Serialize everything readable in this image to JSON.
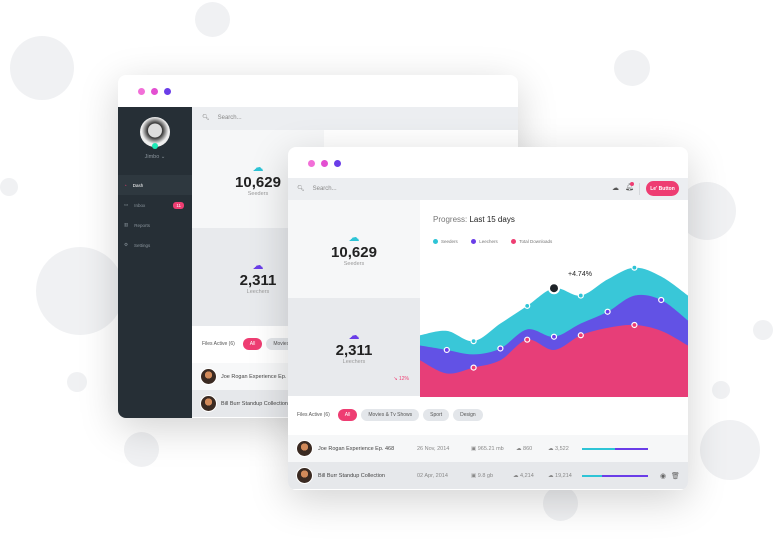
{
  "back_window": {
    "user": {
      "name": "Jimbo"
    },
    "search_placeholder": "Search...",
    "nav": [
      {
        "label": "Dash",
        "active": true
      },
      {
        "label": "Inbox",
        "badge": "11"
      },
      {
        "label": "Reports"
      },
      {
        "label": "Settings"
      }
    ],
    "seeders": {
      "value": "10,629",
      "label": "Seeders"
    },
    "leechers": {
      "value": "2,311",
      "label": "Leechers"
    },
    "files_active": "Files Active (6)",
    "filters": [
      "All",
      "Movies"
    ],
    "rows": [
      "Joe Rogan Experience Ep. 468",
      "Bill Burr Standup Collection"
    ]
  },
  "front_window": {
    "search_placeholder": "Search...",
    "action_button": "Le' Button",
    "seeders": {
      "value": "10,629",
      "label": "Seeders"
    },
    "leechers": {
      "value": "2,311",
      "label": "Leechers",
      "change": "12%"
    },
    "chart": {
      "title_prefix": "Progress:",
      "title": "Last 15 days",
      "tooltip": "+4.74%",
      "colors": {
        "seeders": "#2ec4d6",
        "leechers": "#6a3de8",
        "total": "#ee3d72"
      },
      "series": [
        {
          "name": "Seeders",
          "values": [
            42,
            45,
            38,
            50,
            62,
            74,
            69,
            80,
            88,
            82,
            69
          ]
        },
        {
          "name": "Leechers",
          "values": [
            35,
            32,
            29,
            33,
            46,
            41,
            50,
            58,
            69,
            66,
            52
          ]
        },
        {
          "name": "Total Downloads",
          "values": [
            25,
            16,
            20,
            25,
            39,
            32,
            42,
            47,
            49,
            45,
            35
          ]
        }
      ]
    },
    "files_active": "Files Active (6)",
    "filters": [
      "All",
      "Movies & Tv Shows",
      "Sport",
      "Design"
    ],
    "rows": [
      {
        "name": "Joe Rogan Experience Ep. 468",
        "date": "26 Nov, 2014",
        "size": "965.21 mb",
        "down": "860",
        "up": "3,522",
        "progress": 0.5
      },
      {
        "name": "Bill Burr Standup Collection",
        "date": "02 Apr, 2014",
        "size": "9.8 gb",
        "down": "4,214",
        "up": "19,214",
        "progress": 0.3
      }
    ]
  }
}
